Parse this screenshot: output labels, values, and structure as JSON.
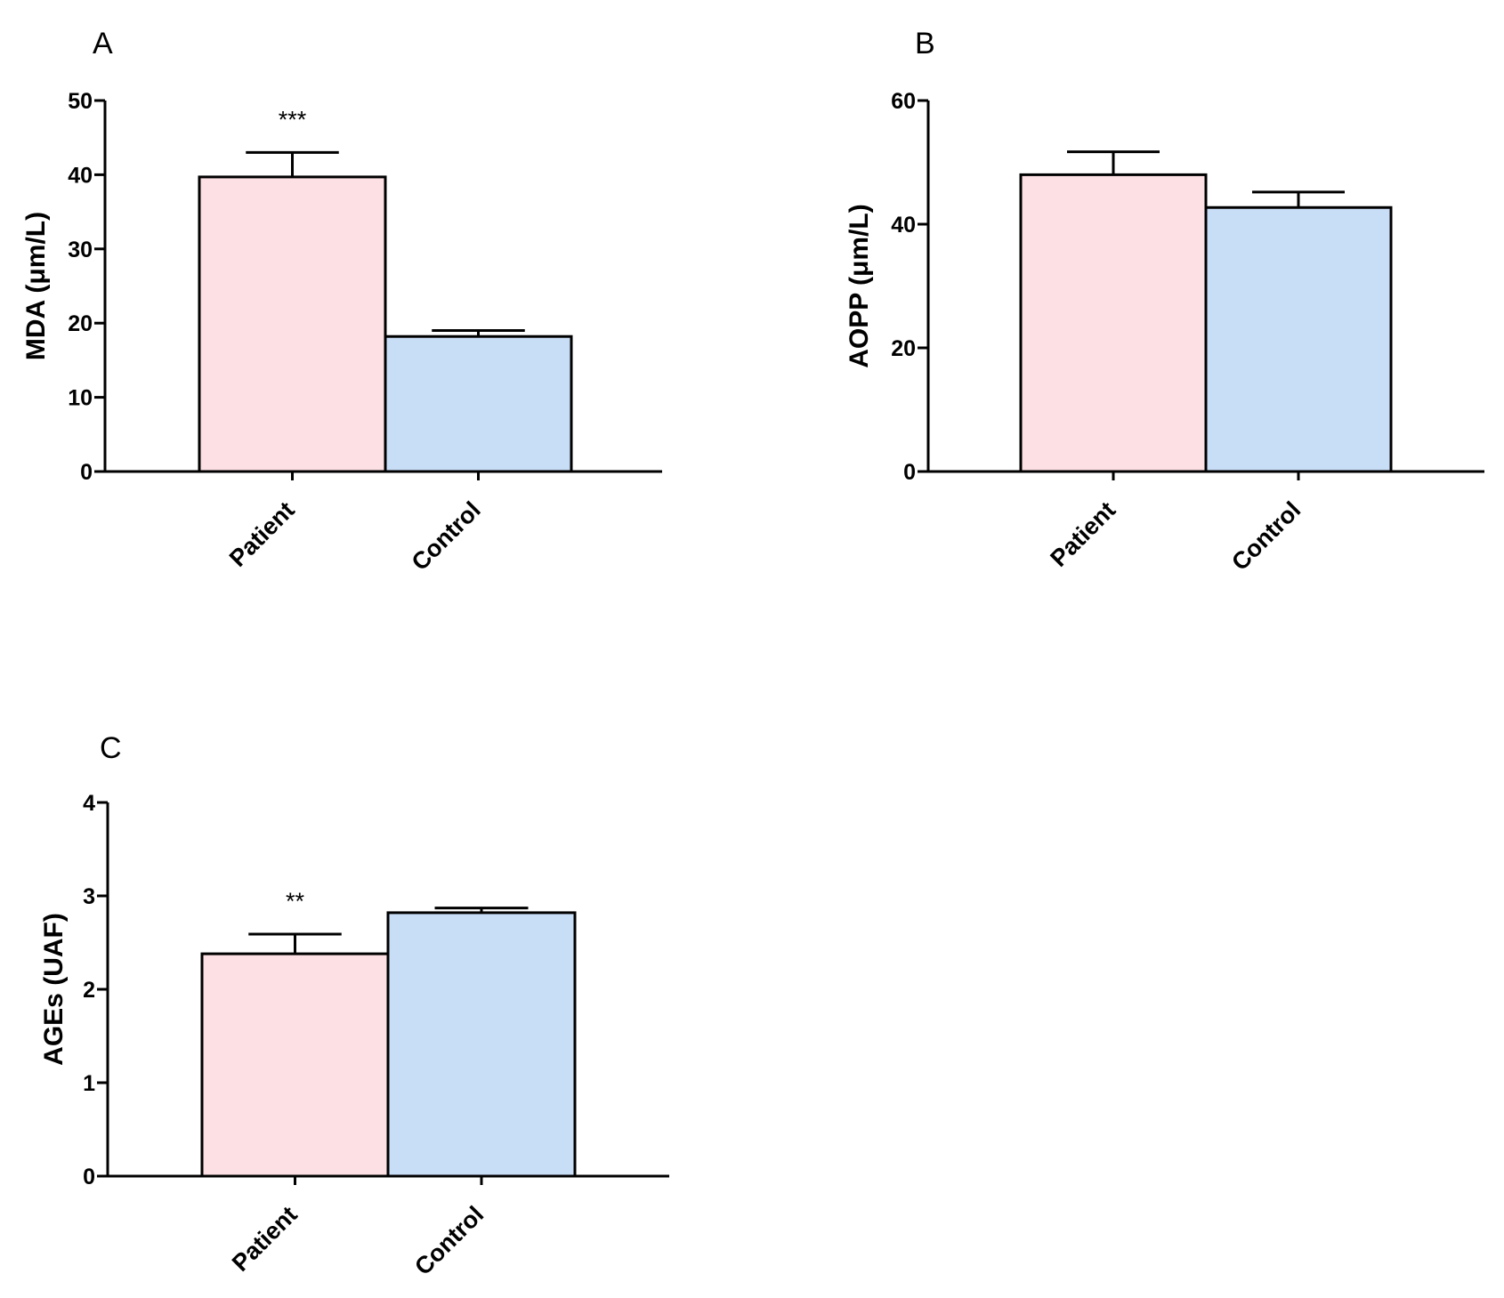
{
  "chart_data": [
    {
      "type": "bar",
      "panel": "A",
      "categories": [
        "Patient",
        "Control"
      ],
      "values": [
        39.7,
        18.2
      ],
      "errors": [
        3.3,
        0.8
      ],
      "significance": [
        "***",
        ""
      ],
      "ylabel": "MDA (μm/L)",
      "xlabel": "",
      "ylim": [
        0,
        50
      ],
      "yticks": [
        0,
        10,
        20,
        30,
        40,
        50
      ],
      "grid": false,
      "colors": [
        "#fde0e3",
        "#c8ddf6"
      ]
    },
    {
      "type": "bar",
      "panel": "B",
      "categories": [
        "Patient",
        "Control"
      ],
      "values": [
        48.0,
        42.7
      ],
      "errors": [
        3.7,
        2.5
      ],
      "significance": [
        "",
        ""
      ],
      "ylabel": "AOPP (μm/L)",
      "xlabel": "",
      "ylim": [
        0,
        60
      ],
      "yticks": [
        0,
        20,
        40,
        60
      ],
      "grid": false,
      "colors": [
        "#fde0e3",
        "#c8ddf6"
      ]
    },
    {
      "type": "bar",
      "panel": "C",
      "categories": [
        "Patient",
        "Control"
      ],
      "values": [
        2.38,
        2.82
      ],
      "errors": [
        0.21,
        0.05
      ],
      "significance": [
        "**",
        ""
      ],
      "ylabel": "AGEs (UAF)",
      "xlabel": "",
      "ylim": [
        0,
        4
      ],
      "yticks": [
        0,
        1,
        2,
        3,
        4
      ],
      "grid": false,
      "colors": [
        "#fde0e3",
        "#c8ddf6"
      ]
    }
  ]
}
